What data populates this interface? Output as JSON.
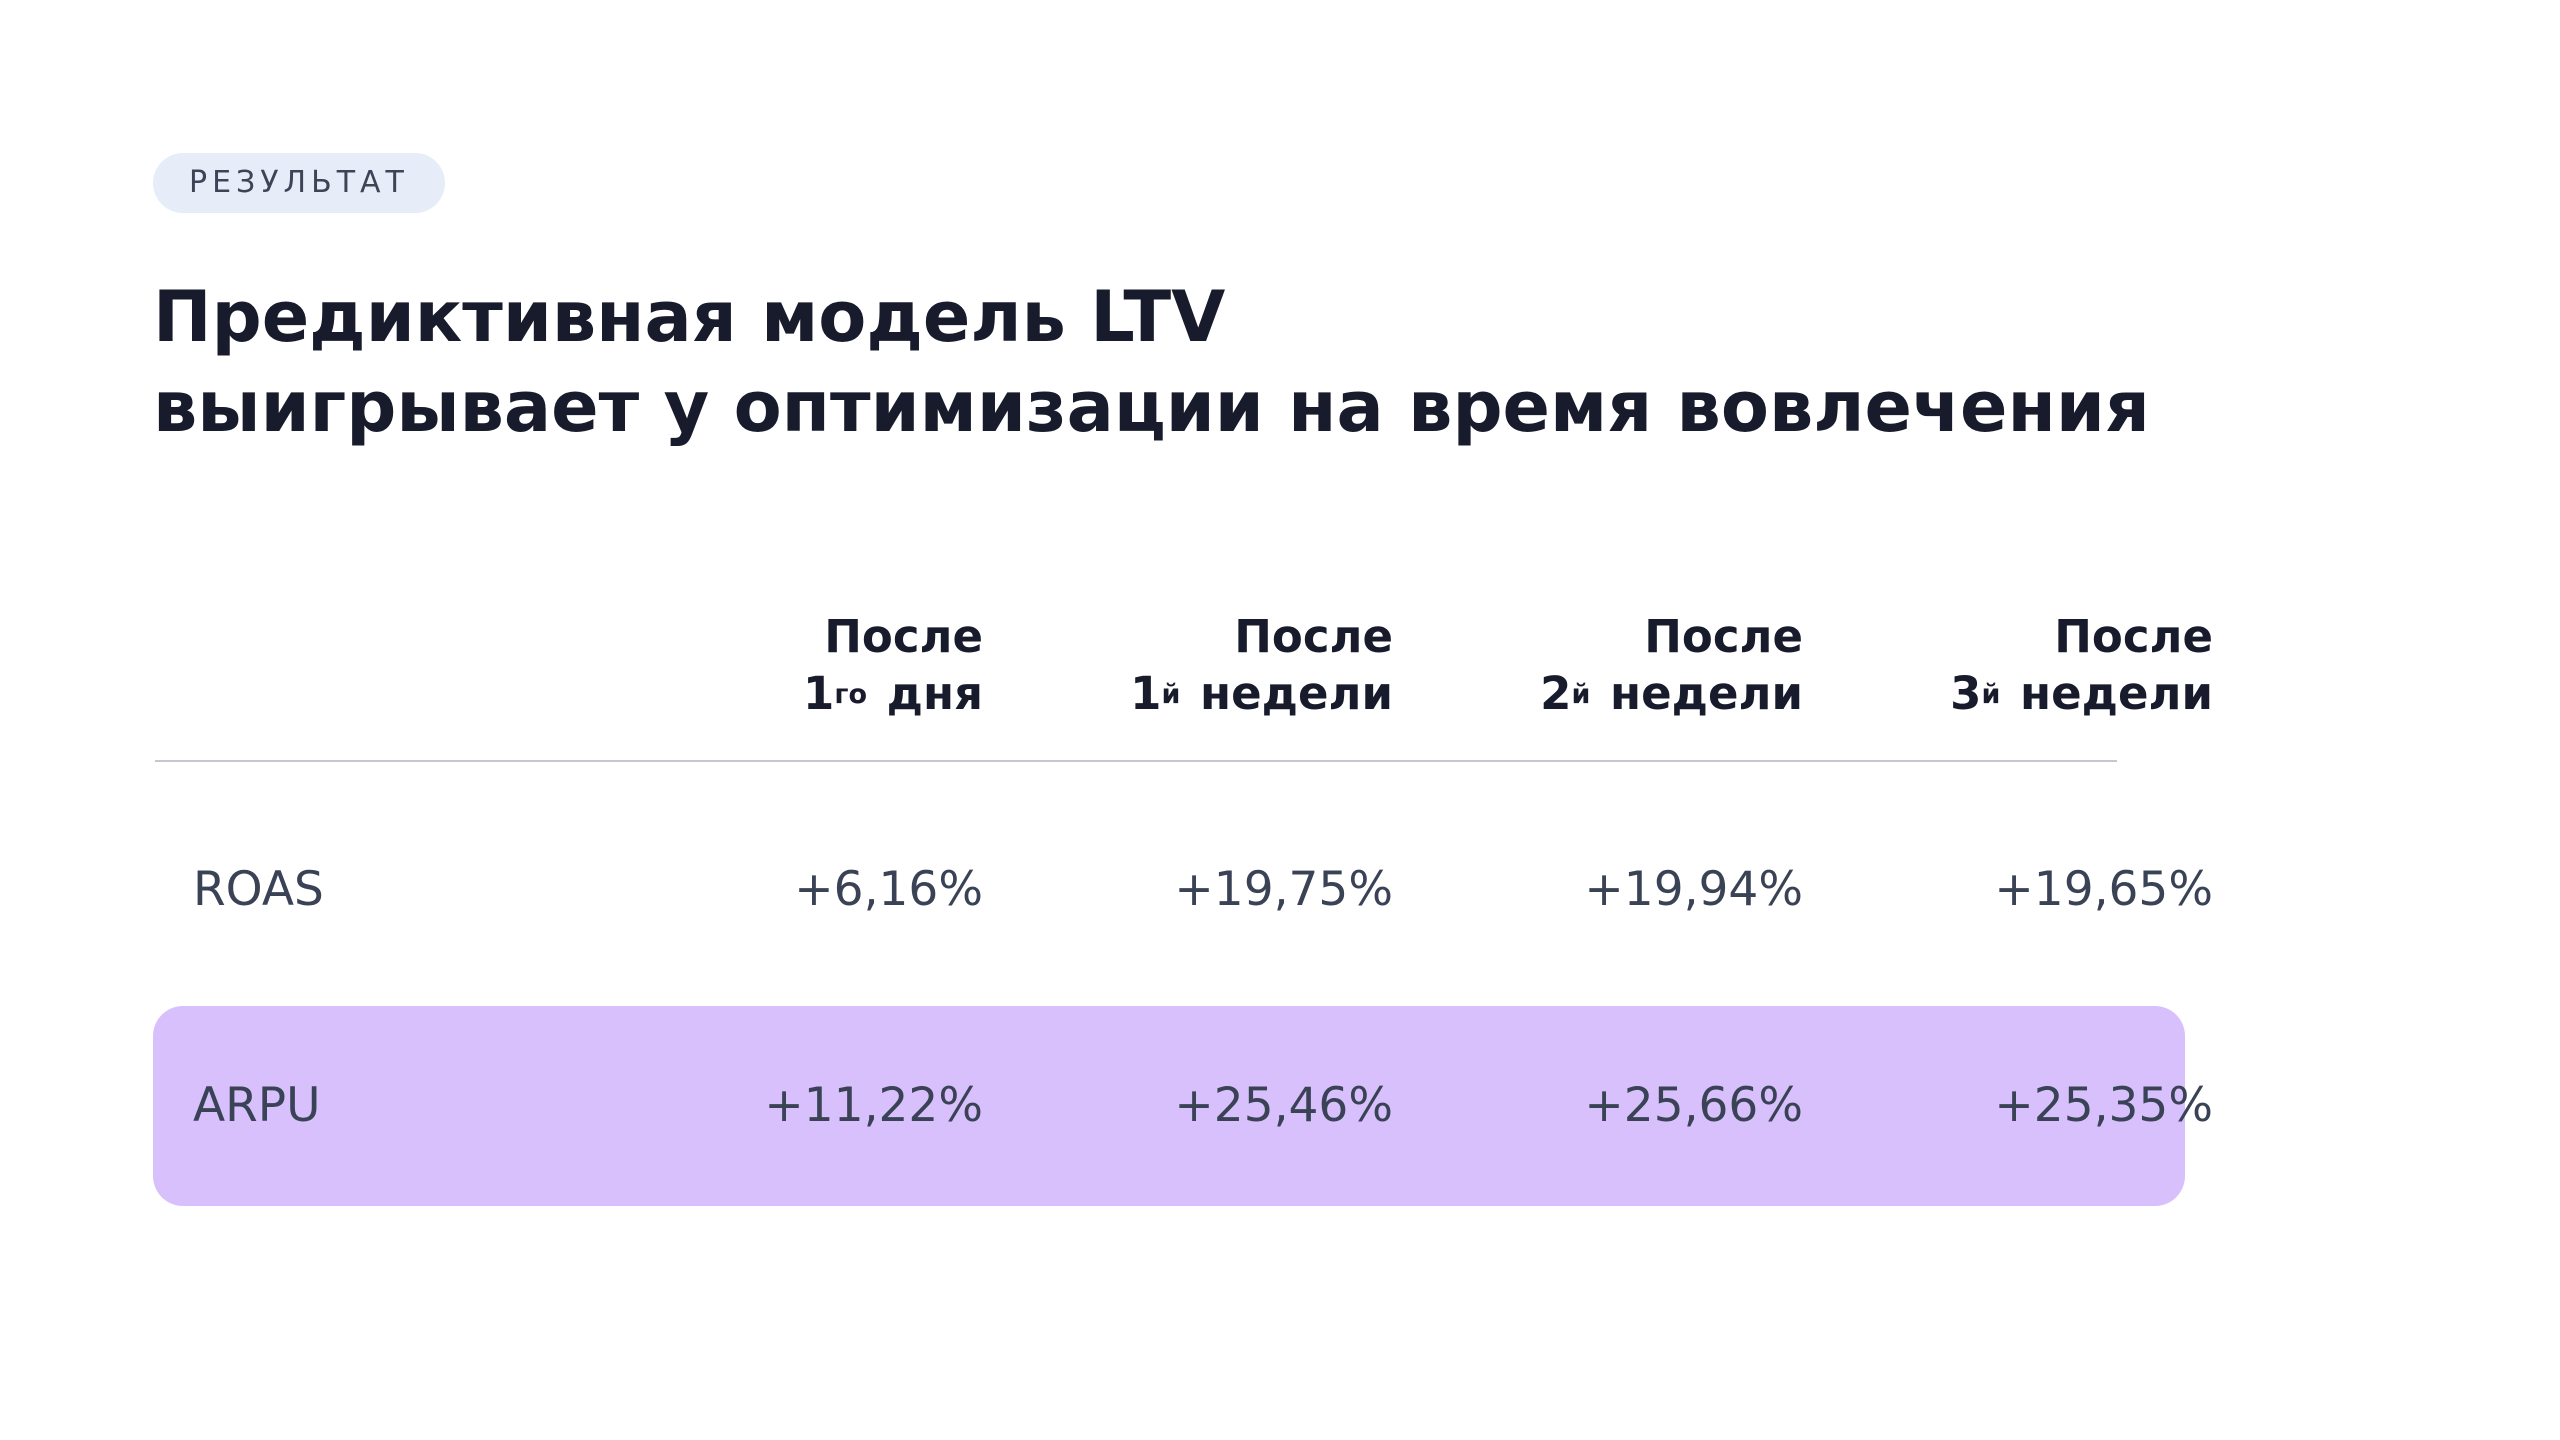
{
  "tag": "РЕЗУЛЬТАТ",
  "title": {
    "line1": "Предиктивная модель LTV",
    "line2": "выигрывает у оптимизации на время вовлечения"
  },
  "table": {
    "columns": [
      {
        "line1": "После",
        "num": "1",
        "sup": "го",
        "tail": "дня"
      },
      {
        "line1": "После",
        "num": "1",
        "sup": "й",
        "tail": "недели"
      },
      {
        "line1": "После",
        "num": "2",
        "sup": "й",
        "tail": "недели"
      },
      {
        "line1": "После",
        "num": "3",
        "sup": "й",
        "tail": "недели"
      }
    ],
    "rows": [
      {
        "label": "ROAS",
        "values": [
          "+6,16%",
          "+19,75%",
          "+19,94%",
          "+19,65%"
        ],
        "highlight": false
      },
      {
        "label": "ARPU",
        "values": [
          "+11,22%",
          "+25,46%",
          "+25,66%",
          "+25,35%"
        ],
        "highlight": true
      }
    ]
  },
  "colors": {
    "highlight_row": "#d8c0fc",
    "tag_background": "#e6ecf8",
    "title_text": "#171b2b"
  }
}
